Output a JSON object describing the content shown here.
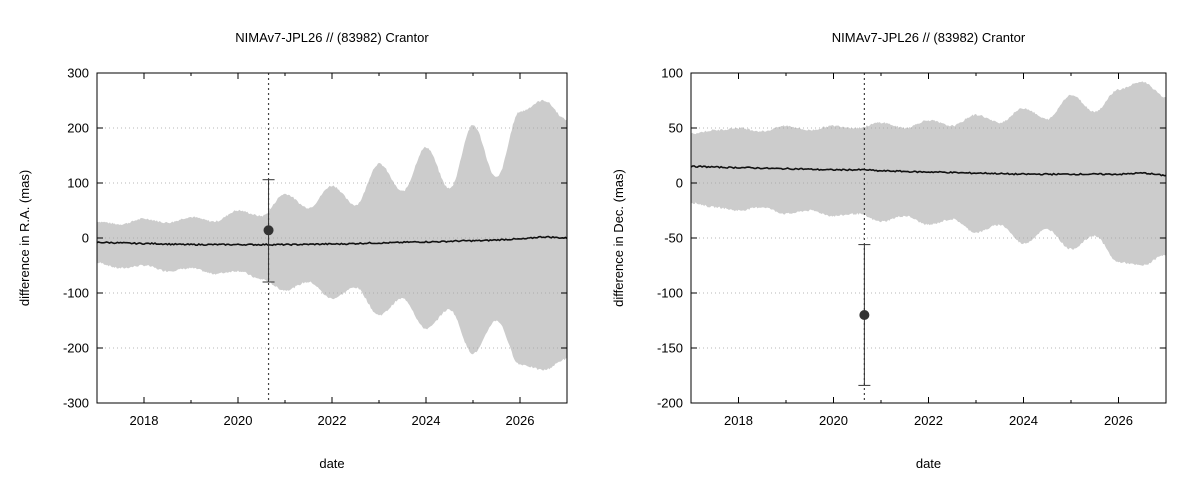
{
  "chart_data": [
    {
      "type": "line",
      "title": "NIMAv7-JPL26 // (83982) Crantor",
      "xlabel": "date",
      "ylabel": "difference in R.A. (mas)",
      "xlim": [
        2017.0,
        2027.0
      ],
      "ylim": [
        -300,
        300
      ],
      "xticks": [
        2018,
        2020,
        2022,
        2024,
        2026
      ],
      "yticks": [
        -300,
        -200,
        -100,
        0,
        100,
        200,
        300
      ],
      "grid": "horizontal dotted",
      "vline_x": 2020.65,
      "colors": {
        "band": "#cccccc",
        "line": "#111111",
        "point": "#333333"
      },
      "uncertainty_band": {
        "x": [
          2017.0,
          2017.5,
          2018.0,
          2018.5,
          2019.0,
          2019.5,
          2020.0,
          2020.5,
          2021.0,
          2021.5,
          2022.0,
          2022.5,
          2023.0,
          2023.5,
          2024.0,
          2024.5,
          2025.0,
          2025.5,
          2026.0,
          2026.5,
          2027.0
        ],
        "upper": [
          30,
          25,
          35,
          28,
          38,
          30,
          50,
          40,
          80,
          55,
          95,
          60,
          135,
          85,
          165,
          90,
          205,
          110,
          230,
          250,
          215
        ],
        "lower": [
          -45,
          -55,
          -50,
          -60,
          -55,
          -65,
          -60,
          -75,
          -95,
          -80,
          -110,
          -90,
          -140,
          -110,
          -165,
          -130,
          -210,
          -150,
          -230,
          -240,
          -220
        ]
      },
      "series": [
        {
          "x": [
            2017.0,
            2018.0,
            2019.0,
            2020.0,
            2020.65,
            2021.0,
            2022.0,
            2023.0,
            2024.0,
            2025.0,
            2026.0,
            2026.5,
            2027.0
          ],
          "y": [
            -8,
            -10,
            -12,
            -12,
            -12,
            -12,
            -11,
            -9,
            -7,
            -5,
            -2,
            2,
            0
          ]
        }
      ],
      "observation": {
        "x": 2020.65,
        "y": 14,
        "yerr_low": -80,
        "yerr_high": 106
      }
    },
    {
      "type": "line",
      "title": "NIMAv7-JPL26 // (83982) Crantor",
      "xlabel": "date",
      "ylabel": "difference in Dec. (mas)",
      "xlim": [
        2017.0,
        2027.0
      ],
      "ylim": [
        -200,
        100
      ],
      "xticks": [
        2018,
        2020,
        2022,
        2024,
        2026
      ],
      "yticks": [
        -200,
        -150,
        -100,
        -50,
        0,
        50,
        100
      ],
      "grid": "horizontal dotted",
      "vline_x": 2020.65,
      "colors": {
        "band": "#cccccc",
        "line": "#111111",
        "point": "#333333"
      },
      "uncertainty_band": {
        "x": [
          2017.0,
          2017.5,
          2018.0,
          2018.5,
          2019.0,
          2019.5,
          2020.0,
          2020.5,
          2021.0,
          2021.5,
          2022.0,
          2022.5,
          2023.0,
          2023.5,
          2024.0,
          2024.5,
          2025.0,
          2025.5,
          2026.0,
          2026.5,
          2027.0
        ],
        "upper": [
          45,
          48,
          50,
          47,
          52,
          48,
          52,
          50,
          55,
          50,
          57,
          52,
          62,
          55,
          68,
          58,
          80,
          65,
          85,
          92,
          78
        ],
        "lower": [
          -18,
          -22,
          -25,
          -22,
          -28,
          -25,
          -30,
          -28,
          -35,
          -30,
          -38,
          -33,
          -45,
          -38,
          -55,
          -42,
          -60,
          -48,
          -72,
          -75,
          -65
        ]
      },
      "series": [
        {
          "x": [
            2017.0,
            2018.0,
            2019.0,
            2020.0,
            2020.65,
            2021.0,
            2022.0,
            2023.0,
            2024.0,
            2025.0,
            2026.0,
            2026.5,
            2027.0
          ],
          "y": [
            15,
            14,
            13,
            12,
            12,
            11,
            10,
            9,
            8,
            8,
            8,
            9,
            7
          ]
        }
      ],
      "observation": {
        "x": 2020.65,
        "y": -120,
        "yerr_low": -184,
        "yerr_high": -56
      }
    }
  ]
}
